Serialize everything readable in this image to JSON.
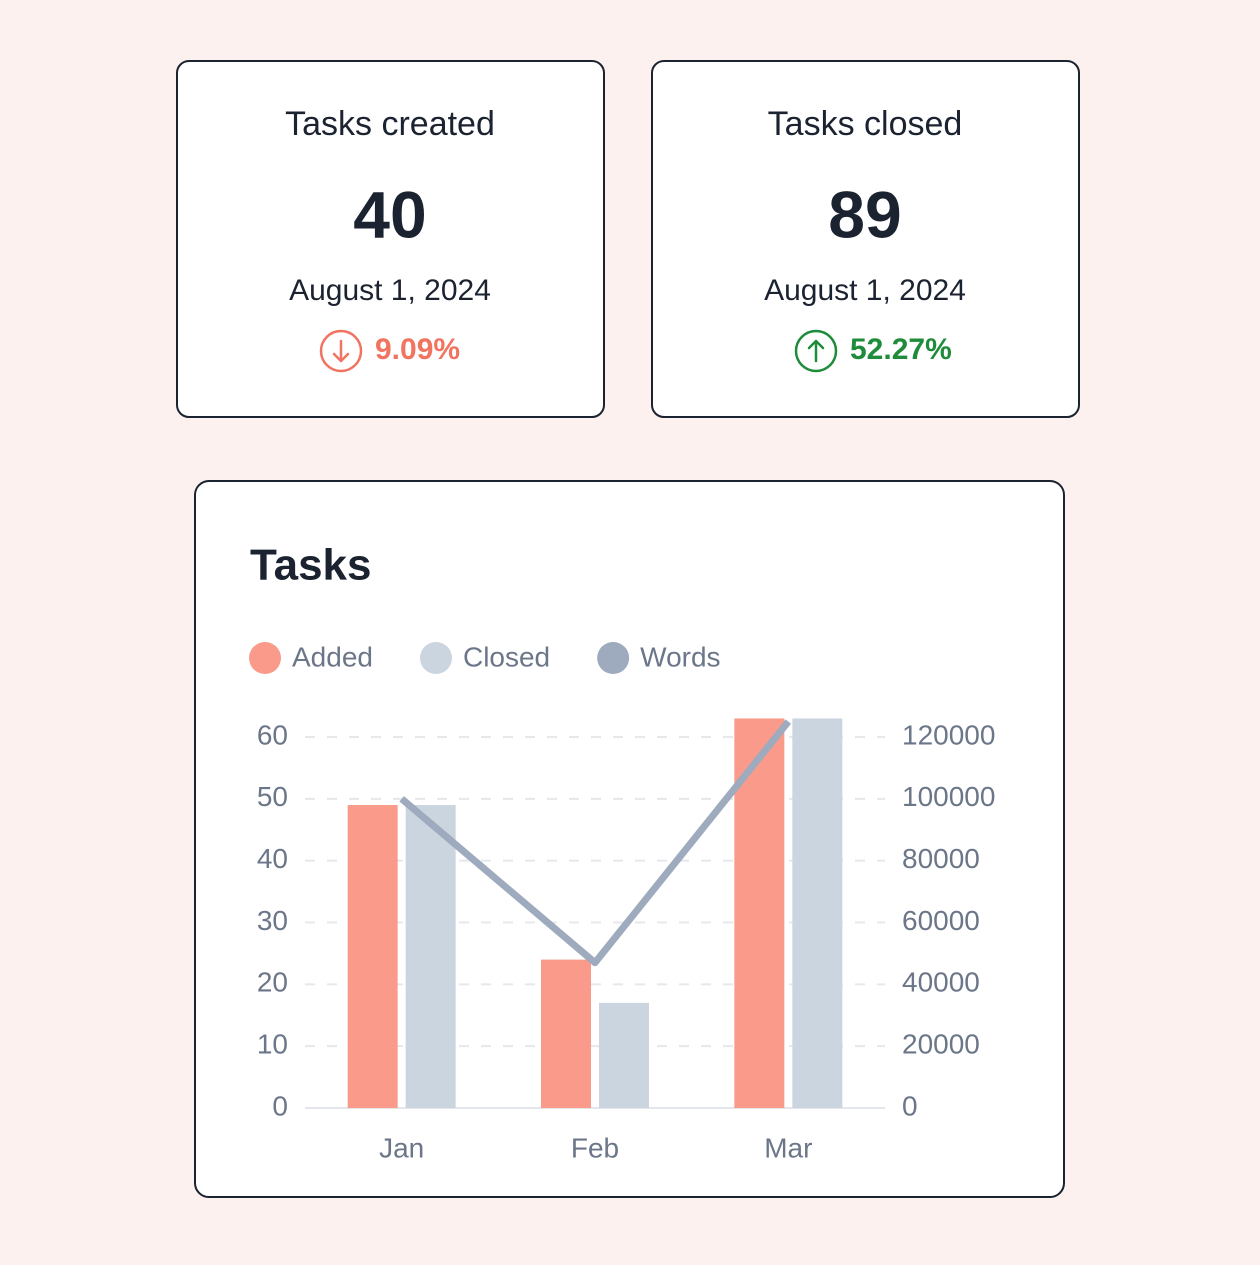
{
  "cards": [
    {
      "title": "Tasks created",
      "value": 40,
      "date": "August 1, 2024",
      "change": "9.09%",
      "trend": "down",
      "color": "#f0745f"
    },
    {
      "title": "Tasks closed",
      "value": 89,
      "date": "August 1, 2024",
      "change": "52.27%",
      "trend": "up",
      "color": "#1e8c3a"
    }
  ],
  "chart_data": {
    "type": "bar",
    "title": "Tasks",
    "categories": [
      "Jan",
      "Feb",
      "Mar"
    ],
    "series": [
      {
        "name": "Added",
        "color": "#f99a8a",
        "values": [
          49,
          24,
          63
        ]
      },
      {
        "name": "Closed",
        "color": "#cbd5df",
        "values": [
          49,
          17,
          63
        ]
      },
      {
        "name": "Words",
        "color": "#9eaabd",
        "type": "line",
        "axis": "y2",
        "values": [
          100000,
          47000,
          125000
        ]
      }
    ],
    "ylim": [
      0,
      60
    ],
    "yticks": [
      0,
      10,
      20,
      30,
      40,
      50,
      60
    ],
    "y2lim": [
      0,
      120000
    ],
    "y2ticks": [
      0,
      20000,
      40000,
      60000,
      80000,
      100000,
      120000
    ],
    "grid": true
  }
}
